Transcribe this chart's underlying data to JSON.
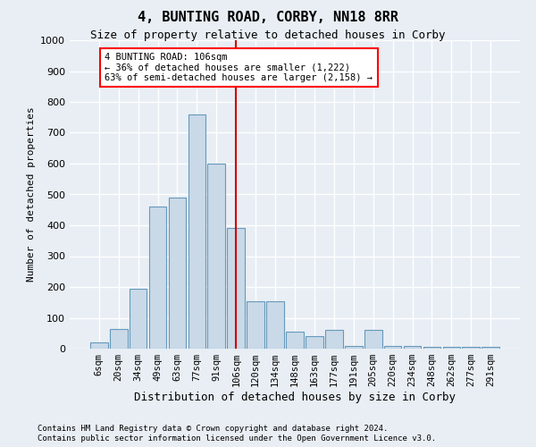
{
  "title": "4, BUNTING ROAD, CORBY, NN18 8RR",
  "subtitle": "Size of property relative to detached houses in Corby",
  "xlabel": "Distribution of detached houses by size in Corby",
  "ylabel": "Number of detached properties",
  "footnote1": "Contains HM Land Registry data © Crown copyright and database right 2024.",
  "footnote2": "Contains public sector information licensed under the Open Government Licence v3.0.",
  "annotation_line1": "4 BUNTING ROAD: 106sqm",
  "annotation_line2": "← 36% of detached houses are smaller (1,222)",
  "annotation_line3": "63% of semi-detached houses are larger (2,158) →",
  "bar_color": "#c9d9e8",
  "bar_edge_color": "#6699bb",
  "highlight_color": "#cc0000",
  "categories": [
    "6sqm",
    "20sqm",
    "34sqm",
    "49sqm",
    "63sqm",
    "77sqm",
    "91sqm",
    "106sqm",
    "120sqm",
    "134sqm",
    "148sqm",
    "163sqm",
    "177sqm",
    "191sqm",
    "205sqm",
    "220sqm",
    "234sqm",
    "248sqm",
    "262sqm",
    "277sqm",
    "291sqm"
  ],
  "values": [
    20,
    65,
    195,
    460,
    490,
    760,
    600,
    390,
    155,
    155,
    55,
    40,
    60,
    10,
    60,
    10,
    10,
    5,
    5,
    5,
    5
  ],
  "highlight_index": 7,
  "ylim": [
    0,
    1000
  ],
  "yticks": [
    0,
    100,
    200,
    300,
    400,
    500,
    600,
    700,
    800,
    900,
    1000
  ],
  "background_color": "#e8eef4",
  "grid_color": "#ffffff"
}
